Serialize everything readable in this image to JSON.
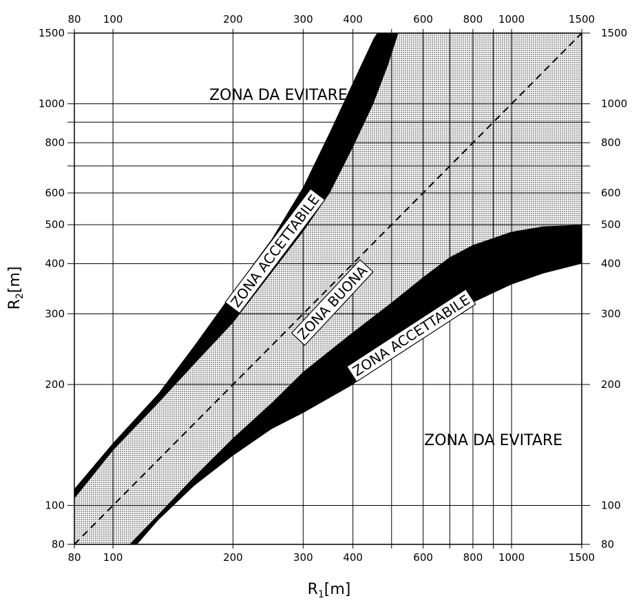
{
  "chart_data": {
    "type": "area",
    "xlabel": "R1[m]",
    "ylabel": "R2[m]",
    "xscale": "log",
    "yscale": "log",
    "xlim": [
      80,
      1500
    ],
    "ylim": [
      80,
      1500
    ],
    "grid": true,
    "x_ticks": [
      80,
      100,
      200,
      300,
      400,
      600,
      800,
      1000,
      1500
    ],
    "y_ticks": [
      80,
      100,
      200,
      300,
      400,
      500,
      600,
      800,
      1000,
      1500
    ],
    "x_gridlines": [
      80,
      100,
      200,
      300,
      400,
      500,
      600,
      700,
      800,
      900,
      1000,
      1500
    ],
    "y_gridlines": [
      80,
      100,
      200,
      300,
      400,
      500,
      600,
      700,
      800,
      900,
      1000,
      1500
    ],
    "colors": {
      "acceptable": "#000000",
      "good": "#d9d9d9",
      "grid": "#000000"
    },
    "reference_line": {
      "style": "dashed",
      "points": [
        [
          80,
          80
        ],
        [
          1500,
          1500
        ]
      ]
    },
    "boundaries": {
      "upper_outer": [
        [
          80,
          110
        ],
        [
          100,
          143
        ],
        [
          130,
          190
        ],
        [
          160,
          250
        ],
        [
          200,
          340
        ],
        [
          250,
          460
        ],
        [
          300,
          620
        ],
        [
          350,
          850
        ],
        [
          400,
          1130
        ],
        [
          450,
          1450
        ],
        [
          460,
          1500
        ]
      ],
      "upper_inner": [
        [
          80,
          104
        ],
        [
          100,
          137
        ],
        [
          130,
          180
        ],
        [
          160,
          225
        ],
        [
          200,
          285
        ],
        [
          250,
          380
        ],
        [
          300,
          480
        ],
        [
          350,
          600
        ],
        [
          400,
          780
        ],
        [
          450,
          1000
        ],
        [
          490,
          1250
        ],
        [
          520,
          1500
        ]
      ],
      "lower_inner": [
        [
          110,
          80
        ],
        [
          130,
          95
        ],
        [
          160,
          118
        ],
        [
          200,
          147
        ],
        [
          250,
          180
        ],
        [
          300,
          215
        ],
        [
          400,
          270
        ],
        [
          500,
          320
        ],
        [
          600,
          370
        ],
        [
          700,
          415
        ],
        [
          800,
          445
        ],
        [
          1000,
          480
        ],
        [
          1200,
          495
        ],
        [
          1500,
          500
        ]
      ],
      "lower_outer": [
        [
          115,
          80
        ],
        [
          130,
          92
        ],
        [
          160,
          112
        ],
        [
          200,
          133
        ],
        [
          250,
          155
        ],
        [
          300,
          170
        ],
        [
          400,
          200
        ],
        [
          500,
          240
        ],
        [
          600,
          275
        ],
        [
          700,
          300
        ],
        [
          800,
          320
        ],
        [
          1000,
          355
        ],
        [
          1200,
          378
        ],
        [
          1500,
          400
        ]
      ]
    },
    "annotations": [
      {
        "id": "avoid-top",
        "text": "ZONA DA EVITARE",
        "x": 260,
        "y": 1050,
        "angle": 0
      },
      {
        "id": "avoid-bottom",
        "text": "ZONA DA EVITARE",
        "x": 900,
        "y": 145,
        "angle": 0
      },
      {
        "id": "acceptable-upper",
        "text": "ZONA ACCETTABILE",
        "x": 255,
        "y": 430,
        "angle": -53,
        "boxed": true
      },
      {
        "id": "good",
        "text": "ZONA BUONA",
        "x": 355,
        "y": 320,
        "angle": -47,
        "boxed": true
      },
      {
        "id": "acceptable-lower",
        "text": "ZONA ACCETTABILE",
        "x": 560,
        "y": 265,
        "angle": -33,
        "boxed": true
      }
    ]
  }
}
